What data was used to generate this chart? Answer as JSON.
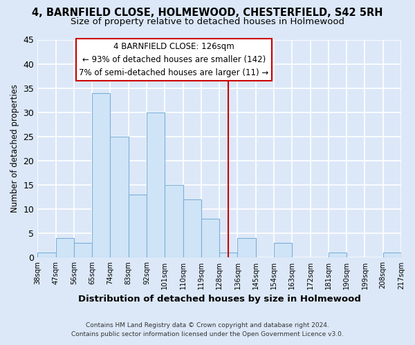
{
  "title1": "4, BARNFIELD CLOSE, HOLMEWOOD, CHESTERFIELD, S42 5RH",
  "title2": "Size of property relative to detached houses in Holmewood",
  "xlabel": "Distribution of detached houses by size in Holmewood",
  "ylabel": "Number of detached properties",
  "bin_labels": [
    "38sqm",
    "47sqm",
    "56sqm",
    "65sqm",
    "74sqm",
    "83sqm",
    "92sqm",
    "101sqm",
    "110sqm",
    "119sqm",
    "128sqm",
    "136sqm",
    "145sqm",
    "154sqm",
    "163sqm",
    "172sqm",
    "181sqm",
    "190sqm",
    "199sqm",
    "208sqm",
    "217sqm"
  ],
  "bar_values": [
    1,
    4,
    3,
    34,
    25,
    13,
    30,
    15,
    12,
    8,
    1,
    4,
    0,
    3,
    0,
    0,
    1,
    0,
    0,
    1
  ],
  "bar_color": "#d0e4f7",
  "bar_edge_color": "#7ab0d8",
  "vline_position": 10.5,
  "annotation_title": "4 BARNFIELD CLOSE: 126sqm",
  "annotation_line1": "← 93% of detached houses are smaller (142)",
  "annotation_line2": "7% of semi-detached houses are larger (11) →",
  "annotation_box_facecolor": "#ffffff",
  "annotation_box_edgecolor": "#cc0000",
  "vline_color": "#cc0000",
  "ylim": [
    0,
    45
  ],
  "yticks": [
    0,
    5,
    10,
    15,
    20,
    25,
    30,
    35,
    40,
    45
  ],
  "footnote1": "Contains HM Land Registry data © Crown copyright and database right 2024.",
  "footnote2": "Contains public sector information licensed under the Open Government Licence v3.0.",
  "fig_bg_color": "#dce8f8",
  "plot_bg_color": "#dce8f8",
  "grid_color": "#ffffff",
  "title_fontsize": 10.5,
  "subtitle_fontsize": 9.5,
  "annotation_fontsize": 8.5
}
